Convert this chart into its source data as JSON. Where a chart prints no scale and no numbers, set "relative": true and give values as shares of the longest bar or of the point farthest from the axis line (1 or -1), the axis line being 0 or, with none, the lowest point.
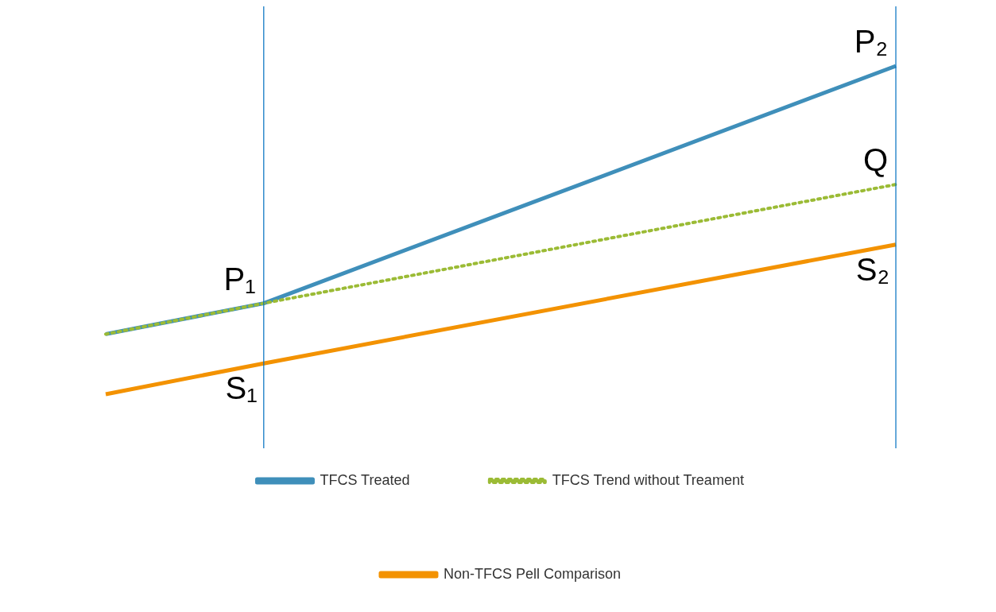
{
  "chart_data": {
    "type": "line",
    "relative": true,
    "categories": [
      null,
      null,
      null,
      null,
      null,
      null
    ],
    "legend": "bottom",
    "marker": "none",
    "series": [
      {
        "name": "TFCS Treated",
        "color": "#3f8fba",
        "values": [
          0.183,
          0.277,
          null,
          null,
          null,
          1
        ],
        "line_style": "solid"
      },
      {
        "name": "TFCS Trend without Treament",
        "color": "#9bbb35",
        "values": [
          0.183,
          0.277,
          null,
          null,
          null,
          0.639
        ],
        "line_style": "dotted"
      },
      {
        "name": "Non-TFCS Pell Comparison",
        "color": "#f39200",
        "values": [
          0,
          0.094,
          null,
          null,
          null,
          0.456
        ],
        "line_style": "solid"
      }
    ],
    "annotations": [
      "P₁",
      "P₂",
      "Q",
      "S₁",
      "S₂"
    ]
  }
}
